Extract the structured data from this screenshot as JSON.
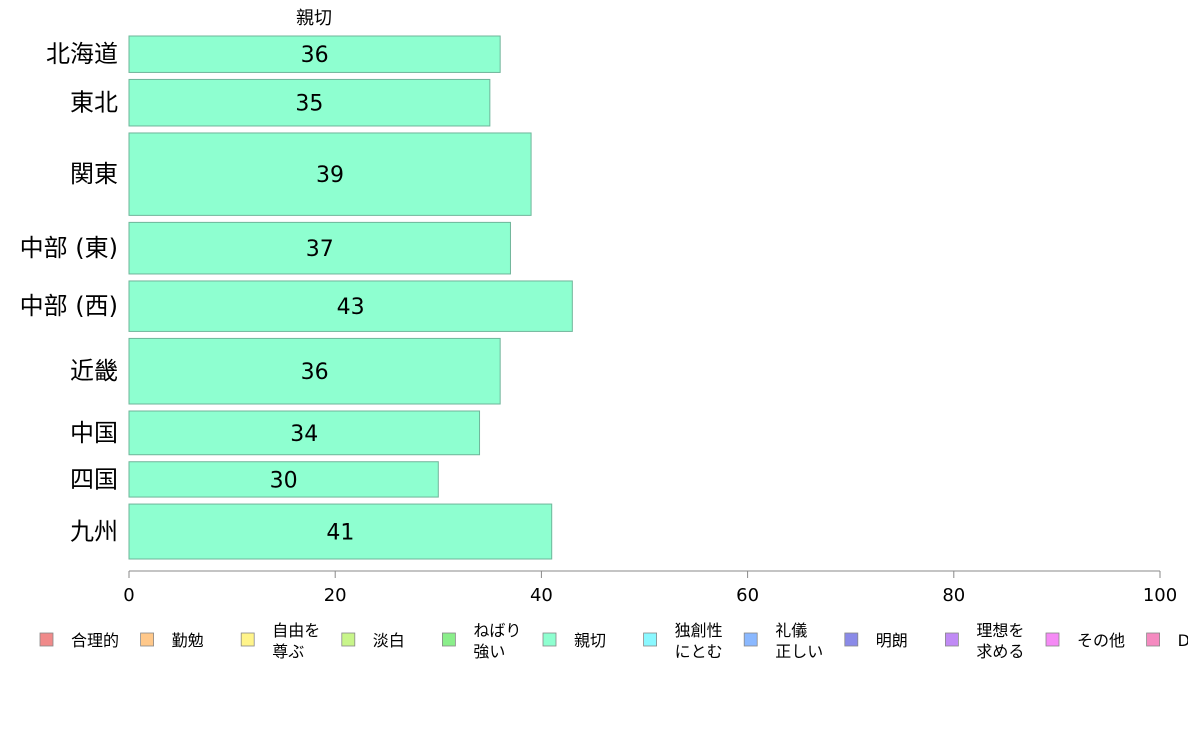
{
  "chart_data": {
    "type": "bar",
    "orientation": "horizontal",
    "series_label": "親切",
    "categories": [
      "北海道",
      "東北",
      "関東",
      "中部 (東)",
      "中部 (西)",
      "近畿",
      "中国",
      "四国",
      "九州"
    ],
    "values": [
      36,
      35,
      39,
      37,
      43,
      36,
      34,
      30,
      41
    ],
    "value_labels": [
      "36",
      "35",
      "39",
      "37",
      "43",
      "36",
      "34",
      "30",
      "41"
    ],
    "category_weights": [
      0.65,
      0.83,
      1.47,
      0.92,
      0.9,
      1.17,
      0.78,
      0.63,
      0.98
    ],
    "xlim": [
      0,
      100
    ],
    "xticks": [
      0,
      20,
      40,
      60,
      80,
      100
    ],
    "xtick_labels": [
      "0",
      "20",
      "40",
      "60",
      "80",
      "100"
    ],
    "bar_color": "#8effd0",
    "bar_stroke": "#6fb59a",
    "grid": false,
    "legend_position": "bottom",
    "legend": [
      {
        "lines": [
          "合理的"
        ],
        "color": "#f08a8a"
      },
      {
        "lines": [
          "勤勉"
        ],
        "color": "#ffc88a"
      },
      {
        "lines": [
          "自由を",
          "尊ぶ"
        ],
        "color": "#fff48a"
      },
      {
        "lines": [
          "淡白"
        ],
        "color": "#c8f58a"
      },
      {
        "lines": [
          "ねばり",
          "強い"
        ],
        "color": "#8aee8a"
      },
      {
        "lines": [
          "親切"
        ],
        "color": "#8effd0"
      },
      {
        "lines": [
          "独創性",
          "にとむ"
        ],
        "color": "#8af8ff"
      },
      {
        "lines": [
          "礼儀",
          "正しい"
        ],
        "color": "#8ab8ff"
      },
      {
        "lines": [
          "明朗"
        ],
        "color": "#8a8ae8"
      },
      {
        "lines": [
          "理想を",
          "求める"
        ],
        "color": "#c08af5"
      },
      {
        "lines": [
          "その他"
        ],
        "color": "#f58af5"
      },
      {
        "lines": [
          "D"
        ],
        "color": "#f58ac0"
      }
    ]
  }
}
